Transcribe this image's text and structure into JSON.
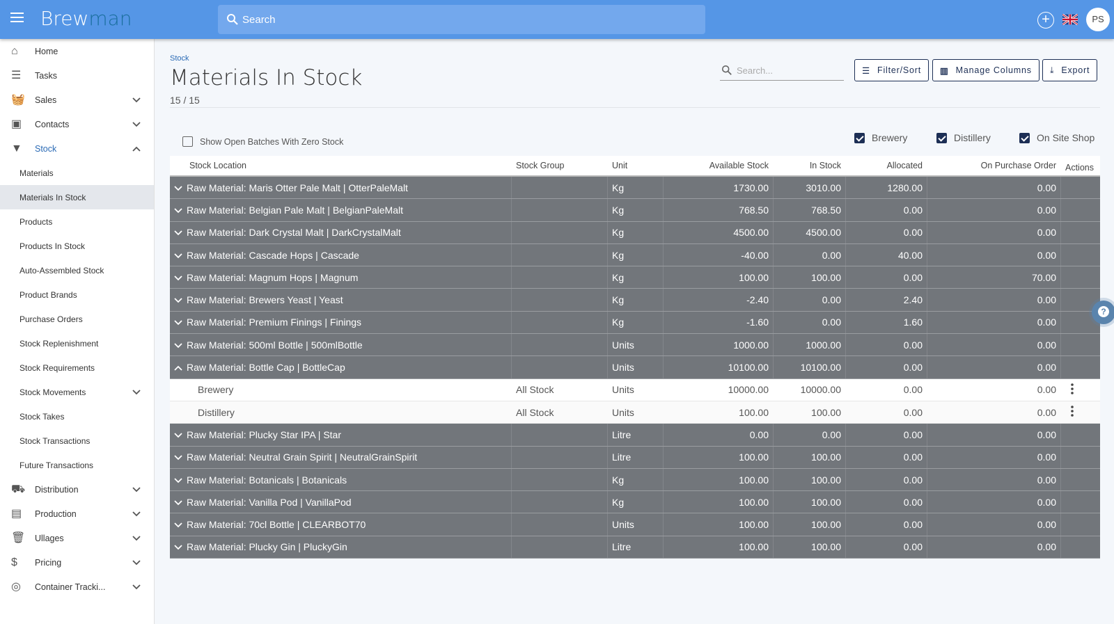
{
  "app": {
    "logo_main": "Brew",
    "logo_accent": "man",
    "search_placeholder": "Search",
    "user_initials": "PS",
    "brand_color": "#5596e6",
    "accent_color": "#1d2f55"
  },
  "sidebar": {
    "items": [
      {
        "label": "Home",
        "icon": "home-icon"
      },
      {
        "label": "Tasks",
        "icon": "list-icon"
      },
      {
        "label": "Sales",
        "icon": "basket-icon",
        "expand": "down"
      },
      {
        "label": "Contacts",
        "icon": "contacts-icon",
        "expand": "down"
      },
      {
        "label": "Stock",
        "icon": "funnel-glass-icon",
        "expand": "up",
        "active_color": "#2a6ab5"
      },
      {
        "label": "Materials",
        "sub": true
      },
      {
        "label": "Materials In Stock",
        "sub": true,
        "active": true
      },
      {
        "label": "Products",
        "sub": true
      },
      {
        "label": "Products In Stock",
        "sub": true
      },
      {
        "label": "Auto-Assembled Stock",
        "sub": true
      },
      {
        "label": "Product Brands",
        "sub": true
      },
      {
        "label": "Purchase Orders",
        "sub": true
      },
      {
        "label": "Stock Replenishment",
        "sub": true
      },
      {
        "label": "Stock Requirements",
        "sub": true
      },
      {
        "label": "Stock Movements",
        "sub": true,
        "expand": "down"
      },
      {
        "label": "Stock Takes",
        "sub": true
      },
      {
        "label": "Stock Transactions",
        "sub": true
      },
      {
        "label": "Future Transactions",
        "sub": true
      },
      {
        "label": "Distribution",
        "icon": "truck-icon",
        "expand": "down"
      },
      {
        "label": "Production",
        "icon": "production-icon",
        "expand": "down"
      },
      {
        "label": "Ullages",
        "icon": "trash-icon",
        "expand": "down"
      },
      {
        "label": "Pricing",
        "icon": "dollar-icon",
        "expand": "down"
      },
      {
        "label": "Container Tracki...",
        "icon": "target-icon",
        "expand": "down"
      }
    ]
  },
  "page": {
    "breadcrumb": "Stock",
    "title": "Materials In Stock",
    "count": "15 / 15",
    "search_placeholder": "Search...",
    "buttons": {
      "filter": "Filter/Sort",
      "columns": "Manage Columns",
      "export": "Export"
    },
    "zero_stock_label": "Show Open Batches With Zero Stock",
    "zero_stock_checked": false,
    "sites": [
      {
        "label": "Brewery",
        "checked": true
      },
      {
        "label": "Distillery",
        "checked": true
      },
      {
        "label": "On Site Shop",
        "checked": true
      }
    ]
  },
  "table": {
    "columns": [
      "Stock Location",
      "Stock Group",
      "Unit",
      "Available Stock",
      "In Stock",
      "Allocated",
      "On Purchase Order",
      "Actions"
    ],
    "rows": [
      {
        "name": "Raw Material: Maris Otter Pale Malt | OtterPaleMalt",
        "unit": "Kg",
        "available": "1730.00",
        "in_stock": "3010.00",
        "allocated": "1280.00",
        "on_po": "0.00"
      },
      {
        "name": "Raw Material: Belgian Pale Malt | BelgianPaleMalt",
        "unit": "Kg",
        "available": "768.50",
        "in_stock": "768.50",
        "allocated": "0.00",
        "on_po": "0.00"
      },
      {
        "name": "Raw Material: Dark Crystal Malt | DarkCrystalMalt",
        "unit": "Kg",
        "available": "4500.00",
        "in_stock": "4500.00",
        "allocated": "0.00",
        "on_po": "0.00"
      },
      {
        "name": "Raw Material: Cascade Hops | Cascade",
        "unit": "Kg",
        "available": "-40.00",
        "in_stock": "0.00",
        "allocated": "40.00",
        "on_po": "0.00"
      },
      {
        "name": "Raw Material: Magnum Hops | Magnum",
        "unit": "Kg",
        "available": "100.00",
        "in_stock": "100.00",
        "allocated": "0.00",
        "on_po": "70.00"
      },
      {
        "name": "Raw Material: Brewers Yeast | Yeast",
        "unit": "Kg",
        "available": "-2.40",
        "in_stock": "0.00",
        "allocated": "2.40",
        "on_po": "0.00"
      },
      {
        "name": "Raw Material: Premium Finings | Finings",
        "unit": "Kg",
        "available": "-1.60",
        "in_stock": "0.00",
        "allocated": "1.60",
        "on_po": "0.00"
      },
      {
        "name": "Raw Material: 500ml Bottle | 500mlBottle",
        "unit": "Units",
        "available": "1000.00",
        "in_stock": "1000.00",
        "allocated": "0.00",
        "on_po": "0.00"
      },
      {
        "name": "Raw Material: Bottle Cap | BottleCap",
        "unit": "Units",
        "available": "10100.00",
        "in_stock": "10100.00",
        "allocated": "0.00",
        "on_po": "0.00",
        "expanded": true,
        "children": [
          {
            "name": "Brewery",
            "group": "All Stock",
            "unit": "Units",
            "available": "10000.00",
            "in_stock": "10000.00",
            "allocated": "0.00",
            "on_po": "0.00"
          },
          {
            "name": "Distillery",
            "group": "All Stock",
            "unit": "Units",
            "available": "100.00",
            "in_stock": "100.00",
            "allocated": "0.00",
            "on_po": "0.00"
          }
        ]
      },
      {
        "name": "Raw Material: Plucky Star IPA | Star",
        "unit": "Litre",
        "available": "0.00",
        "in_stock": "0.00",
        "allocated": "0.00",
        "on_po": "0.00"
      },
      {
        "name": "Raw Material: Neutral Grain Spirit | NeutralGrainSpirit",
        "unit": "Litre",
        "available": "100.00",
        "in_stock": "100.00",
        "allocated": "0.00",
        "on_po": "0.00"
      },
      {
        "name": "Raw Material: Botanicals | Botanicals",
        "unit": "Kg",
        "available": "100.00",
        "in_stock": "100.00",
        "allocated": "0.00",
        "on_po": "0.00"
      },
      {
        "name": "Raw Material: Vanilla Pod | VanillaPod",
        "unit": "Kg",
        "available": "100.00",
        "in_stock": "100.00",
        "allocated": "0.00",
        "on_po": "0.00"
      },
      {
        "name": "Raw Material: 70cl Bottle | CLEARBOT70",
        "unit": "Units",
        "available": "100.00",
        "in_stock": "100.00",
        "allocated": "0.00",
        "on_po": "0.00"
      },
      {
        "name": "Raw Material: Plucky Gin | PluckyGin",
        "unit": "Litre",
        "available": "100.00",
        "in_stock": "100.00",
        "allocated": "0.00",
        "on_po": "0.00"
      }
    ]
  }
}
